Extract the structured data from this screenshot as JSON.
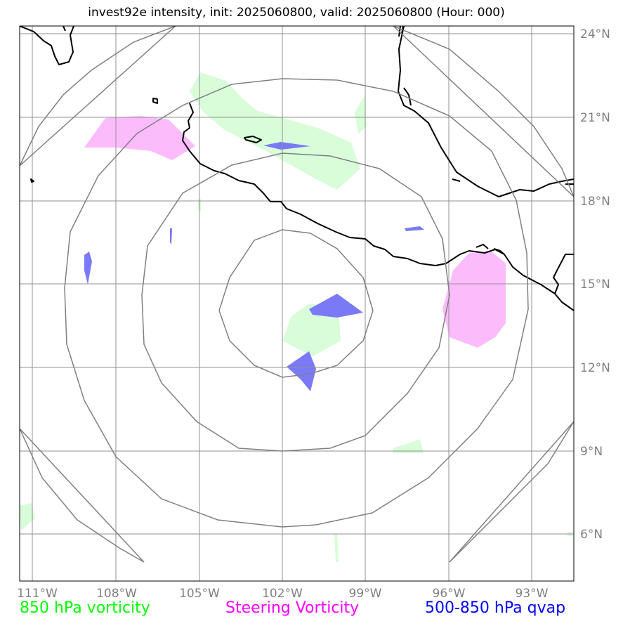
{
  "title": "invest92e intensity, init: 2025060800, valid: 2025060800 (Hour: 000)",
  "lon_labels": [
    "111°W",
    "108°W",
    "105°W",
    "102°W",
    "99°W",
    "96°W",
    "93°W"
  ],
  "lat_labels": [
    "24°N",
    "21°N",
    "18°N",
    "15°N",
    "12°N",
    "9°N",
    "6°N"
  ],
  "legend": {
    "vort850": {
      "label": "850 hPa vorticity",
      "color": "#00ff00"
    },
    "steering": {
      "label": "Steering Vorticity",
      "color": "#ff00ff"
    },
    "qvap": {
      "label": "500-850 hPa qvap",
      "color": "#0000ff"
    }
  },
  "fills": {
    "vort850": "#d9fcd9",
    "steering": "#fcbcfc",
    "qvap": "#7a7af7"
  }
}
